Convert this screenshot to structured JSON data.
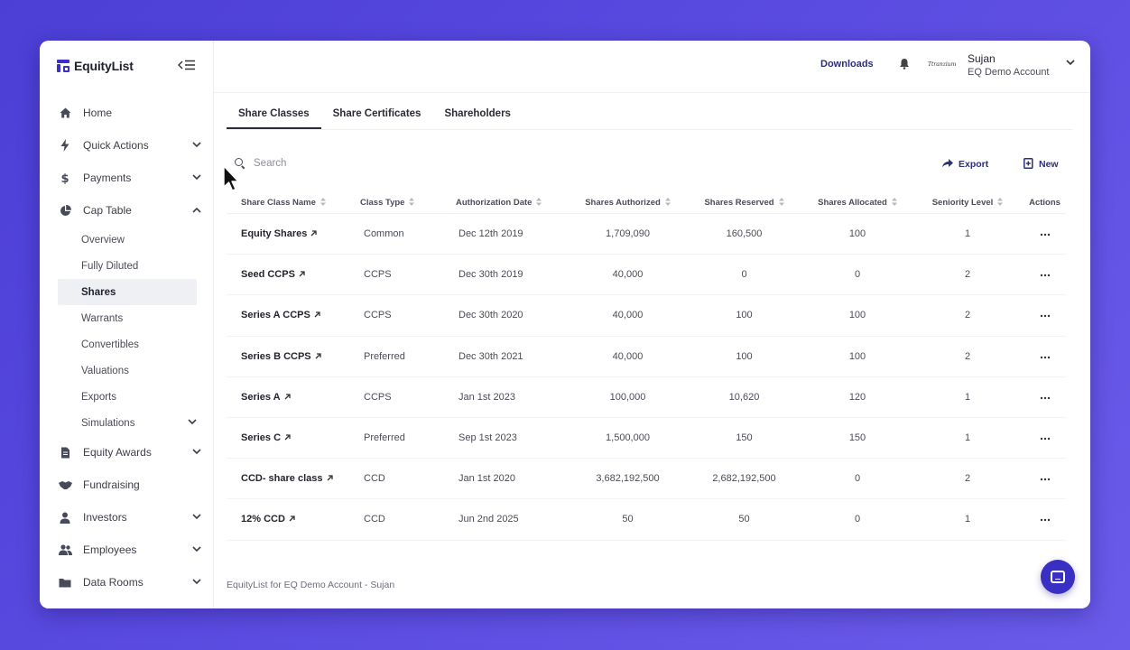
{
  "app": {
    "brand": "EquityList",
    "footer": "EquityList for EQ Demo Account - Sujan"
  },
  "colors": {
    "accent": "#3a2fc3",
    "background": "#5a4be0",
    "link": "#2c2f7a"
  },
  "sidebar": {
    "items": [
      {
        "label": "Home",
        "icon": "home-icon",
        "chevron": ""
      },
      {
        "label": "Quick Actions",
        "icon": "bolt-icon",
        "chevron": "down"
      },
      {
        "label": "Payments",
        "icon": "dollar-icon",
        "chevron": "down"
      },
      {
        "label": "Cap Table",
        "icon": "pie-chart-icon",
        "chevron": "up"
      }
    ],
    "cap_table_sub": [
      {
        "label": "Overview"
      },
      {
        "label": "Fully Diluted"
      },
      {
        "label": "Shares",
        "active": true
      },
      {
        "label": "Warrants"
      },
      {
        "label": "Convertibles"
      },
      {
        "label": "Valuations"
      },
      {
        "label": "Exports"
      },
      {
        "label": "Simulations",
        "chevron": "down"
      }
    ],
    "items_after": [
      {
        "label": "Equity Awards",
        "icon": "document-icon",
        "chevron": "down"
      },
      {
        "label": "Fundraising",
        "icon": "handshake-icon",
        "chevron": ""
      },
      {
        "label": "Investors",
        "icon": "person-icon",
        "chevron": "down"
      },
      {
        "label": "Employees",
        "icon": "people-icon",
        "chevron": "down"
      },
      {
        "label": "Data Rooms",
        "icon": "folder-icon",
        "chevron": "down"
      }
    ]
  },
  "header": {
    "downloads": "Downloads",
    "org_logo_text": "Ttranzium",
    "user_name": "Sujan",
    "user_org": "EQ Demo Account"
  },
  "tabs": [
    {
      "label": "Share Classes",
      "active": true
    },
    {
      "label": "Share Certificates",
      "active": false
    },
    {
      "label": "Shareholders",
      "active": false
    }
  ],
  "search": {
    "placeholder": "Search"
  },
  "actions": {
    "export": "Export",
    "new": "New"
  },
  "table": {
    "columns": [
      "Share Class Name",
      "Class Type",
      "Authorization Date",
      "Shares Authorized",
      "Shares Reserved",
      "Shares Allocated",
      "Seniority Level",
      "Actions"
    ],
    "rows": [
      {
        "name": "Equity Shares",
        "type": "Common",
        "date": "Dec 12th 2019",
        "authorized": "1,709,090",
        "reserved": "160,500",
        "allocated": "100",
        "seniority": "1"
      },
      {
        "name": "Seed CCPS",
        "type": "CCPS",
        "date": "Dec 30th 2019",
        "authorized": "40,000",
        "reserved": "0",
        "allocated": "0",
        "seniority": "2"
      },
      {
        "name": "Series A CCPS",
        "type": "CCPS",
        "date": "Dec 30th 2020",
        "authorized": "40,000",
        "reserved": "100",
        "allocated": "100",
        "seniority": "2"
      },
      {
        "name": "Series B CCPS",
        "type": "Preferred",
        "date": "Dec 30th 2021",
        "authorized": "40,000",
        "reserved": "100",
        "allocated": "100",
        "seniority": "2"
      },
      {
        "name": "Series A",
        "type": "CCPS",
        "date": "Jan 1st 2023",
        "authorized": "100,000",
        "reserved": "10,620",
        "allocated": "120",
        "seniority": "1"
      },
      {
        "name": "Series C",
        "type": "Preferred",
        "date": "Sep 1st 2023",
        "authorized": "1,500,000",
        "reserved": "150",
        "allocated": "150",
        "seniority": "1"
      },
      {
        "name": "CCD- share class",
        "type": "CCD",
        "date": "Jan 1st 2020",
        "authorized": "3,682,192,500",
        "reserved": "2,682,192,500",
        "allocated": "0",
        "seniority": "2"
      },
      {
        "name": "12% CCD",
        "type": "CCD",
        "date": "Jun 2nd 2025",
        "authorized": "50",
        "reserved": "50",
        "allocated": "0",
        "seniority": "1"
      }
    ]
  }
}
